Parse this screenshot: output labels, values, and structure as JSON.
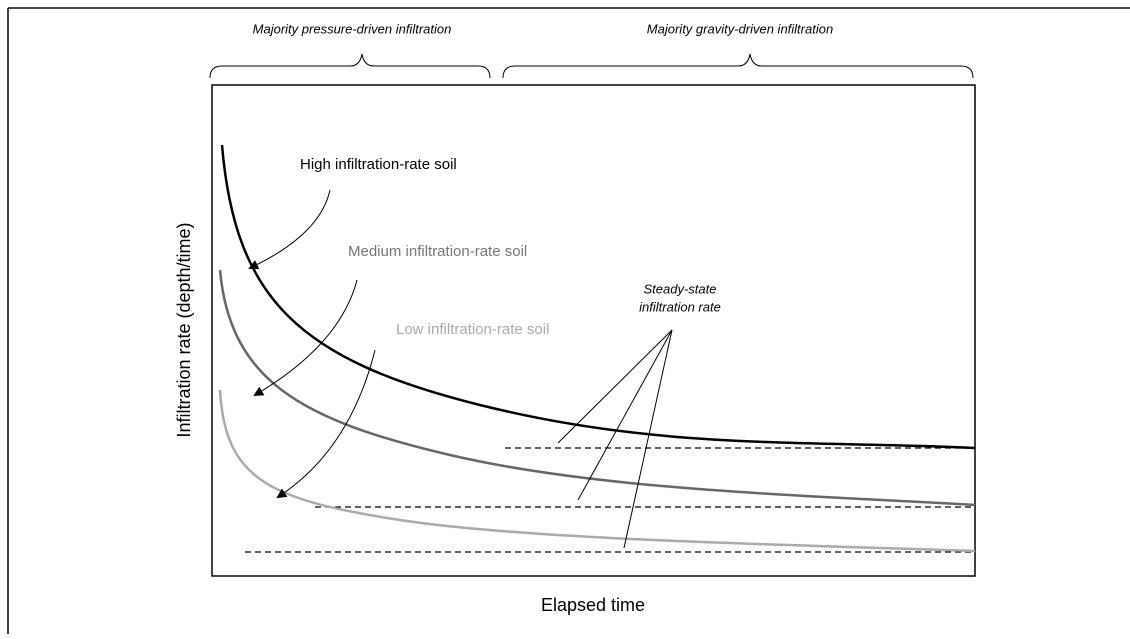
{
  "header": {
    "left": "Majority pressure-driven infiltration",
    "right": "Majority gravity-driven infiltration"
  },
  "axes": {
    "y_label": "Infiltration rate (depth/time)",
    "x_label": "Elapsed time"
  },
  "curves": [
    {
      "label": "High infiltration-rate soil"
    },
    {
      "label": "Medium infiltration-rate soil"
    },
    {
      "label": "Low infiltration-rate soil"
    }
  ],
  "annotation": {
    "line1": "Steady-state",
    "line2": "infiltration rate"
  }
}
